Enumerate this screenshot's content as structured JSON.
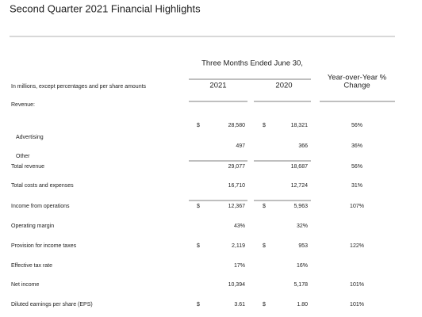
{
  "header": {
    "title": "Second Quarter 2021 Financial Highlights"
  },
  "table": {
    "period": "Three Months Ended June 30,",
    "note": "In millions, except percentages and per share amounts",
    "columns": [
      "2021",
      "2020"
    ],
    "change_header": [
      "Year-over-Year %",
      "Change"
    ],
    "rows": [
      {
        "label": "Revenue:"
      },
      {
        "label": "Advertising",
        "sign_2021": "$",
        "v2021": "28,580",
        "sign_2020": "$",
        "v2020": "18,321",
        "change": "56%"
      },
      {
        "label": "Other",
        "v2021": "497",
        "v2020": "366",
        "change": "36%"
      },
      {
        "label": "Total revenue",
        "v2021": "29,077",
        "v2020": "18,687",
        "change": "56%"
      },
      {
        "label": "Total costs and expenses",
        "v2021": "16,710",
        "v2020": "12,724",
        "change": "31%"
      },
      {
        "label": "Income from operations",
        "sign_2021": "$",
        "v2021": "12,367",
        "sign_2020": "$",
        "v2020": "5,963",
        "change": "107%"
      },
      {
        "label": "Operating margin",
        "v2021": "43%",
        "v2020": "32%"
      },
      {
        "label": "Provision for income taxes",
        "sign_2021": "$",
        "v2021": "2,119",
        "sign_2020": "$",
        "v2020": "953",
        "change": "122%"
      },
      {
        "label": "Effective tax rate",
        "v2021": "17%",
        "v2020": "16%"
      },
      {
        "label": "Net income",
        "v2021": "10,394",
        "v2020": "5,178",
        "change": "101%"
      },
      {
        "label": "Diluted earnings per share (EPS)",
        "sign_2021": "$",
        "v2021": "3.61",
        "sign_2020": "$",
        "v2020": "1.80",
        "change": "101%"
      }
    ]
  }
}
